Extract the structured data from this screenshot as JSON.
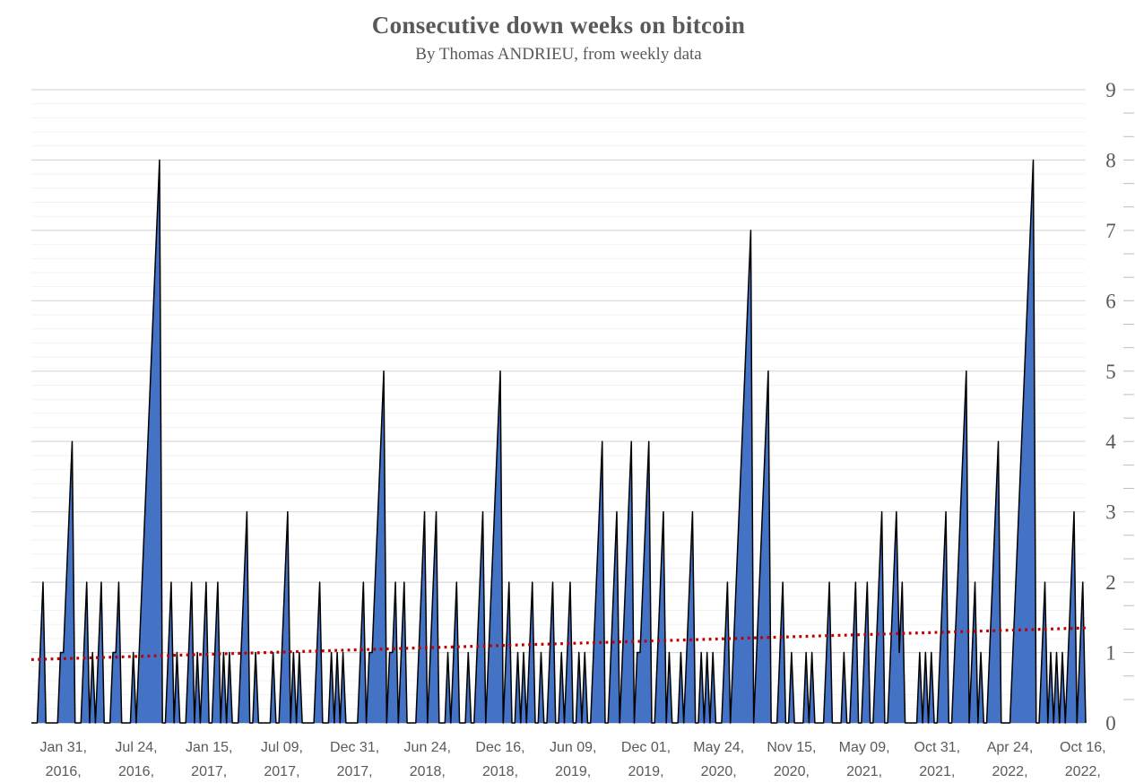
{
  "chart_data": {
    "type": "area",
    "title": "Consecutive down weeks on bitcoin",
    "subtitle": "By Thomas ANDRIEU, from weekly data",
    "series_name": "Consecutive down weeks",
    "ylim": [
      0,
      9
    ],
    "y_major_unit": 1,
    "y_minor_unit": 0.2,
    "grid": true,
    "legend": "none",
    "y_ticks": [
      "0",
      "1",
      "2",
      "3",
      "4",
      "5",
      "6",
      "7",
      "8",
      "9"
    ],
    "n_weeks": 363,
    "x_tick_labels": [
      {
        "line1": "Jan 31,",
        "line2": "2016,",
        "week": 11
      },
      {
        "line1": "Jul 24,",
        "line2": "2016,",
        "week": 36
      },
      {
        "line1": "Jan 15,",
        "line2": "2017,",
        "week": 61
      },
      {
        "line1": "Jul 09,",
        "line2": "2017,",
        "week": 86
      },
      {
        "line1": "Dec 31,",
        "line2": "2017,",
        "week": 111
      },
      {
        "line1": "Jun 24,",
        "line2": "2018,",
        "week": 136
      },
      {
        "line1": "Dec 16,",
        "line2": "2018,",
        "week": 161
      },
      {
        "line1": "Jun 09,",
        "line2": "2019,",
        "week": 186
      },
      {
        "line1": "Dec 01,",
        "line2": "2019,",
        "week": 211
      },
      {
        "line1": "May 24,",
        "line2": "2020,",
        "week": 236
      },
      {
        "line1": "Nov 15,",
        "line2": "2020,",
        "week": 261
      },
      {
        "line1": "May 09,",
        "line2": "2021,",
        "week": 286
      },
      {
        "line1": "Oct 31,",
        "line2": "2021,",
        "week": 311
      },
      {
        "line1": "Apr 24,",
        "line2": "2022,",
        "week": 336
      },
      {
        "line1": "Oct 16,",
        "line2": "2022,",
        "week": 361
      }
    ],
    "spikes_encoding": "each item = [end_week_index, streak_length]; weekly value ramps 1..length ending at end_week, 0 elsewhere",
    "spikes": [
      [
        4,
        2
      ],
      [
        10,
        1
      ],
      [
        14,
        4
      ],
      [
        19,
        2
      ],
      [
        21,
        1
      ],
      [
        24,
        2
      ],
      [
        28,
        1
      ],
      [
        30,
        2
      ],
      [
        35,
        1
      ],
      [
        44,
        8
      ],
      [
        48,
        2
      ],
      [
        50,
        1
      ],
      [
        55,
        2
      ],
      [
        57,
        1
      ],
      [
        60,
        2
      ],
      [
        64,
        2
      ],
      [
        66,
        1
      ],
      [
        68,
        1
      ],
      [
        74,
        3
      ],
      [
        77,
        1
      ],
      [
        83,
        1
      ],
      [
        88,
        3
      ],
      [
        90,
        1
      ],
      [
        92,
        1
      ],
      [
        99,
        2
      ],
      [
        103,
        1
      ],
      [
        105,
        1
      ],
      [
        107,
        1
      ],
      [
        114,
        2
      ],
      [
        116,
        1
      ],
      [
        121,
        5
      ],
      [
        123,
        1
      ],
      [
        125,
        2
      ],
      [
        128,
        2
      ],
      [
        135,
        3
      ],
      [
        139,
        3
      ],
      [
        143,
        1
      ],
      [
        146,
        2
      ],
      [
        150,
        1
      ],
      [
        155,
        3
      ],
      [
        161,
        5
      ],
      [
        164,
        2
      ],
      [
        167,
        1
      ],
      [
        169,
        1
      ],
      [
        172,
        2
      ],
      [
        175,
        1
      ],
      [
        179,
        2
      ],
      [
        182,
        1
      ],
      [
        185,
        2
      ],
      [
        188,
        1
      ],
      [
        190,
        1
      ],
      [
        196,
        4
      ],
      [
        201,
        3
      ],
      [
        206,
        4
      ],
      [
        208,
        1
      ],
      [
        212,
        4
      ],
      [
        217,
        3
      ],
      [
        219,
        1
      ],
      [
        223,
        1
      ],
      [
        227,
        3
      ],
      [
        230,
        1
      ],
      [
        232,
        1
      ],
      [
        234,
        1
      ],
      [
        239,
        2
      ],
      [
        247,
        7
      ],
      [
        253,
        5
      ],
      [
        258,
        2
      ],
      [
        261,
        1
      ],
      [
        266,
        1
      ],
      [
        268,
        1
      ],
      [
        274,
        2
      ],
      [
        279,
        1
      ],
      [
        283,
        2
      ],
      [
        287,
        2
      ],
      [
        292,
        3
      ],
      [
        297,
        3
      ],
      [
        299,
        2
      ],
      [
        305,
        1
      ],
      [
        307,
        1
      ],
      [
        309,
        1
      ],
      [
        314,
        3
      ],
      [
        321,
        5
      ],
      [
        324,
        2
      ],
      [
        326,
        1
      ],
      [
        332,
        4
      ],
      [
        344,
        8
      ],
      [
        348,
        2
      ],
      [
        350,
        1
      ],
      [
        352,
        1
      ],
      [
        354,
        1
      ],
      [
        358,
        3
      ],
      [
        361,
        2
      ]
    ],
    "trendline": {
      "type": "linear",
      "start_value": 0.9,
      "end_value": 1.35
    },
    "colors": {
      "fill": "#4472C4",
      "outline": "#000000",
      "trend": "#C00000",
      "grid_major": "#D9D9D9",
      "grid_minor": "#F2F2F2",
      "axis": "#BFBFBF",
      "text": "#595959",
      "background": "#FFFFFF"
    }
  }
}
